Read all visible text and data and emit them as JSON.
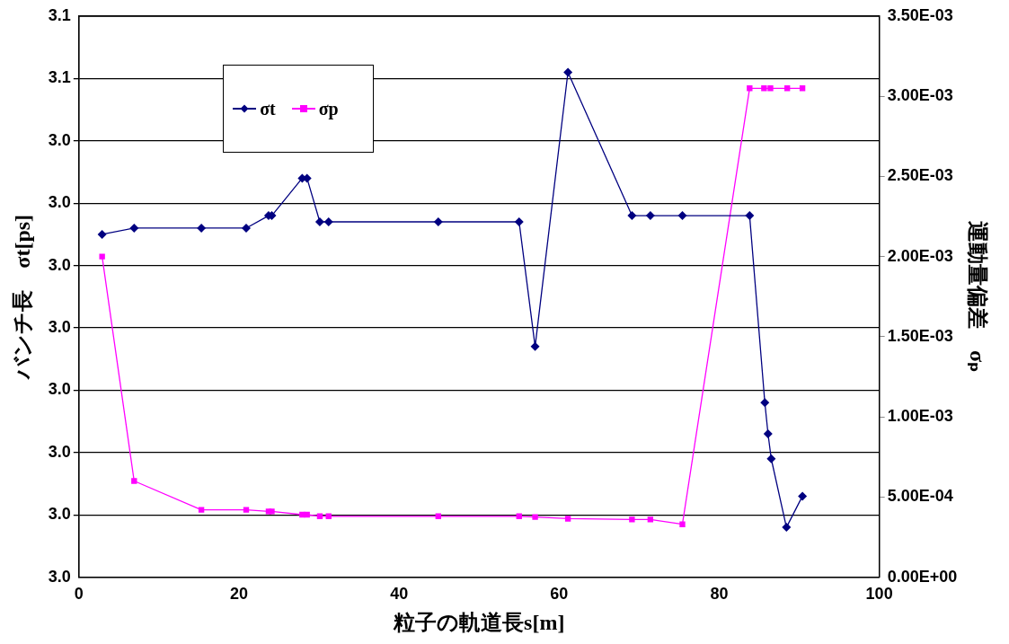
{
  "chart_data": {
    "type": "line",
    "xlabel": "粒子の軌道長s[m]",
    "ylabel": "バンチ長　σt[ps]",
    "y2label": "運動量偏差　σₚ",
    "xlim": [
      0,
      100
    ],
    "xticks": [
      0,
      20,
      40,
      60,
      80,
      100
    ],
    "ylim": [
      2.97,
      3.06
    ],
    "yticks": [
      {
        "value": 2.97,
        "label": "3.0"
      },
      {
        "value": 2.98,
        "label": "3.0"
      },
      {
        "value": 2.99,
        "label": "3.0"
      },
      {
        "value": 3.0,
        "label": "3.0"
      },
      {
        "value": 3.01,
        "label": "3.0"
      },
      {
        "value": 3.02,
        "label": "3.0"
      },
      {
        "value": 3.03,
        "label": "3.0"
      },
      {
        "value": 3.04,
        "label": "3.0"
      },
      {
        "value": 3.05,
        "label": "3.1"
      },
      {
        "value": 3.06,
        "label": "3.1"
      }
    ],
    "y2lim": [
      0,
      0.0035
    ],
    "y2ticks": [
      {
        "value": 0,
        "label": "0.00E+00"
      },
      {
        "value": 0.0005,
        "label": "5.00E-04"
      },
      {
        "value": 0.001,
        "label": "1.00E-03"
      },
      {
        "value": 0.0015,
        "label": "1.50E-03"
      },
      {
        "value": 0.002,
        "label": "2.00E-03"
      },
      {
        "value": 0.0025,
        "label": "2.50E-03"
      },
      {
        "value": 0.003,
        "label": "3.00E-03"
      },
      {
        "value": 0.0035,
        "label": "3.50E-03"
      }
    ],
    "grid": "y",
    "legend": "top left",
    "line_style": "solid",
    "series": [
      {
        "name": "σt",
        "color": "#000080",
        "marker": "diamond",
        "x": [
          2.9,
          6.9,
          15.3,
          20.9,
          23.7,
          24.1,
          27.9,
          28.5,
          30.1,
          31.2,
          44.9,
          55.0,
          57.0,
          61.1,
          69.1,
          71.4,
          75.4,
          83.8,
          85.7,
          86.1,
          86.5,
          88.4,
          90.4
        ],
        "values": [
          3.025,
          3.026,
          3.026,
          3.026,
          3.028,
          3.028,
          3.034,
          3.034,
          3.027,
          3.027,
          3.027,
          3.027,
          3.007,
          3.051,
          3.028,
          3.028,
          3.028,
          3.028,
          2.998,
          2.993,
          2.989,
          2.978,
          2.983
        ]
      },
      {
        "name": "σp",
        "color": "#ff00ff",
        "marker": "square",
        "axis": "y2",
        "x": [
          2.9,
          6.9,
          15.3,
          20.9,
          23.7,
          24.1,
          27.9,
          28.5,
          30.1,
          31.2,
          44.9,
          55.0,
          57.0,
          61.1,
          69.1,
          71.4,
          75.4,
          83.8,
          85.6,
          86.4,
          88.5,
          90.4
        ],
        "values": [
          0.002,
          0.0006,
          0.00042,
          0.00042,
          0.00041,
          0.00041,
          0.00039,
          0.00039,
          0.00038,
          0.00038,
          0.00038,
          0.00038,
          0.000375,
          0.000365,
          0.00036,
          0.00036,
          0.00033,
          0.00305,
          0.00305,
          0.00305,
          0.00305,
          0.00305
        ]
      }
    ]
  }
}
